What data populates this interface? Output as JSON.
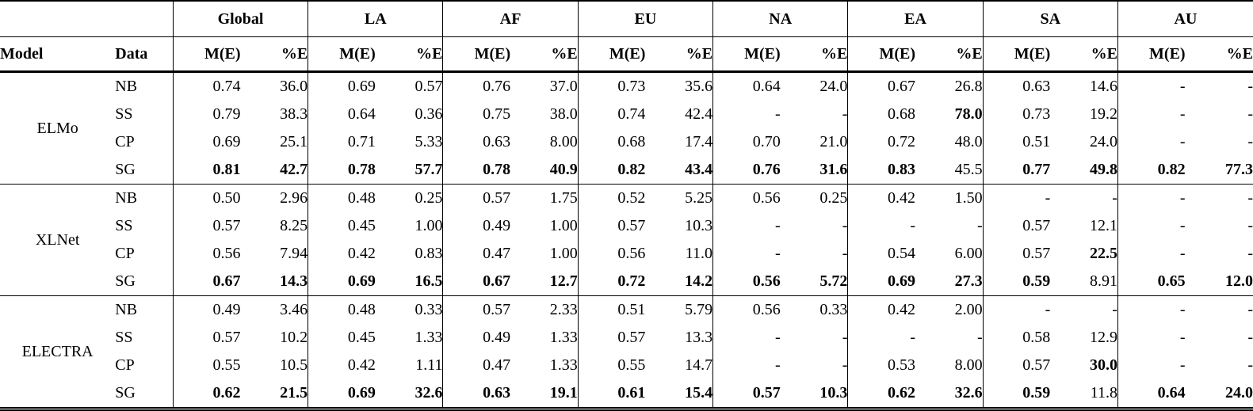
{
  "table": {
    "corner": "",
    "groups": [
      "Global",
      "LA",
      "AF",
      "EU",
      "NA",
      "EA",
      "SA",
      "AU"
    ],
    "col_headers": {
      "model": "Model",
      "data": "Data",
      "metric": "M(E)",
      "percent": "%E"
    },
    "blocks": [
      {
        "model": "ELMo",
        "rows": [
          {
            "data": "NB",
            "cells": [
              [
                "0.74",
                0
              ],
              [
                "36.0",
                0
              ],
              [
                "0.69",
                0
              ],
              [
                "0.57",
                0
              ],
              [
                "0.76",
                0
              ],
              [
                "37.0",
                0
              ],
              [
                "0.73",
                0
              ],
              [
                "35.6",
                0
              ],
              [
                "0.64",
                0
              ],
              [
                "24.0",
                0
              ],
              [
                "0.67",
                0
              ],
              [
                "26.8",
                0
              ],
              [
                "0.63",
                0
              ],
              [
                "14.6",
                0
              ],
              [
                "-",
                0
              ],
              [
                "-",
                0
              ]
            ]
          },
          {
            "data": "SS",
            "cells": [
              [
                "0.79",
                0
              ],
              [
                "38.3",
                0
              ],
              [
                "0.64",
                0
              ],
              [
                "0.36",
                0
              ],
              [
                "0.75",
                0
              ],
              [
                "38.0",
                0
              ],
              [
                "0.74",
                0
              ],
              [
                "42.4",
                0
              ],
              [
                "-",
                0
              ],
              [
                "-",
                0
              ],
              [
                "0.68",
                0
              ],
              [
                "78.0",
                1
              ],
              [
                "0.73",
                0
              ],
              [
                "19.2",
                0
              ],
              [
                "-",
                0
              ],
              [
                "-",
                0
              ]
            ]
          },
          {
            "data": "CP",
            "cells": [
              [
                "0.69",
                0
              ],
              [
                "25.1",
                0
              ],
              [
                "0.71",
                0
              ],
              [
                "5.33",
                0
              ],
              [
                "0.63",
                0
              ],
              [
                "8.00",
                0
              ],
              [
                "0.68",
                0
              ],
              [
                "17.4",
                0
              ],
              [
                "0.70",
                0
              ],
              [
                "21.0",
                0
              ],
              [
                "0.72",
                0
              ],
              [
                "48.0",
                0
              ],
              [
                "0.51",
                0
              ],
              [
                "24.0",
                0
              ],
              [
                "-",
                0
              ],
              [
                "-",
                0
              ]
            ]
          },
          {
            "data": "SG",
            "cells": [
              [
                "0.81",
                1
              ],
              [
                "42.7",
                1
              ],
              [
                "0.78",
                1
              ],
              [
                "57.7",
                1
              ],
              [
                "0.78",
                1
              ],
              [
                "40.9",
                1
              ],
              [
                "0.82",
                1
              ],
              [
                "43.4",
                1
              ],
              [
                "0.76",
                1
              ],
              [
                "31.6",
                1
              ],
              [
                "0.83",
                1
              ],
              [
                "45.5",
                0
              ],
              [
                "0.77",
                1
              ],
              [
                "49.8",
                1
              ],
              [
                "0.82",
                1
              ],
              [
                "77.3",
                1
              ]
            ]
          }
        ]
      },
      {
        "model": "XLNet",
        "rows": [
          {
            "data": "NB",
            "cells": [
              [
                "0.50",
                0
              ],
              [
                "2.96",
                0
              ],
              [
                "0.48",
                0
              ],
              [
                "0.25",
                0
              ],
              [
                "0.57",
                0
              ],
              [
                "1.75",
                0
              ],
              [
                "0.52",
                0
              ],
              [
                "5.25",
                0
              ],
              [
                "0.56",
                0
              ],
              [
                "0.25",
                0
              ],
              [
                "0.42",
                0
              ],
              [
                "1.50",
                0
              ],
              [
                "-",
                0
              ],
              [
                "-",
                0
              ],
              [
                "-",
                0
              ],
              [
                "-",
                0
              ]
            ]
          },
          {
            "data": "SS",
            "cells": [
              [
                "0.57",
                0
              ],
              [
                "8.25",
                0
              ],
              [
                "0.45",
                0
              ],
              [
                "1.00",
                0
              ],
              [
                "0.49",
                0
              ],
              [
                "1.00",
                0
              ],
              [
                "0.57",
                0
              ],
              [
                "10.3",
                0
              ],
              [
                "-",
                0
              ],
              [
                "-",
                0
              ],
              [
                "-",
                0
              ],
              [
                "-",
                0
              ],
              [
                "0.57",
                0
              ],
              [
                "12.1",
                0
              ],
              [
                "-",
                0
              ],
              [
                "-",
                0
              ]
            ]
          },
          {
            "data": "CP",
            "cells": [
              [
                "0.56",
                0
              ],
              [
                "7.94",
                0
              ],
              [
                "0.42",
                0
              ],
              [
                "0.83",
                0
              ],
              [
                "0.47",
                0
              ],
              [
                "1.00",
                0
              ],
              [
                "0.56",
                0
              ],
              [
                "11.0",
                0
              ],
              [
                "-",
                0
              ],
              [
                "-",
                0
              ],
              [
                "0.54",
                0
              ],
              [
                "6.00",
                0
              ],
              [
                "0.57",
                0
              ],
              [
                "22.5",
                1
              ],
              [
                "-",
                0
              ],
              [
                "-",
                0
              ]
            ]
          },
          {
            "data": "SG",
            "cells": [
              [
                "0.67",
                1
              ],
              [
                "14.3",
                1
              ],
              [
                "0.69",
                1
              ],
              [
                "16.5",
                1
              ],
              [
                "0.67",
                1
              ],
              [
                "12.7",
                1
              ],
              [
                "0.72",
                1
              ],
              [
                "14.2",
                1
              ],
              [
                "0.56",
                1
              ],
              [
                "5.72",
                1
              ],
              [
                "0.69",
                1
              ],
              [
                "27.3",
                1
              ],
              [
                "0.59",
                1
              ],
              [
                "8.91",
                0
              ],
              [
                "0.65",
                1
              ],
              [
                "12.0",
                1
              ]
            ]
          }
        ]
      },
      {
        "model": "ELECTRA",
        "rows": [
          {
            "data": "NB",
            "cells": [
              [
                "0.49",
                0
              ],
              [
                "3.46",
                0
              ],
              [
                "0.48",
                0
              ],
              [
                "0.33",
                0
              ],
              [
                "0.57",
                0
              ],
              [
                "2.33",
                0
              ],
              [
                "0.51",
                0
              ],
              [
                "5.79",
                0
              ],
              [
                "0.56",
                0
              ],
              [
                "0.33",
                0
              ],
              [
                "0.42",
                0
              ],
              [
                "2.00",
                0
              ],
              [
                "-",
                0
              ],
              [
                "-",
                0
              ],
              [
                "-",
                0
              ],
              [
                "-",
                0
              ]
            ]
          },
          {
            "data": "SS",
            "cells": [
              [
                "0.57",
                0
              ],
              [
                "10.2",
                0
              ],
              [
                "0.45",
                0
              ],
              [
                "1.33",
                0
              ],
              [
                "0.49",
                0
              ],
              [
                "1.33",
                0
              ],
              [
                "0.57",
                0
              ],
              [
                "13.3",
                0
              ],
              [
                "-",
                0
              ],
              [
                "-",
                0
              ],
              [
                "-",
                0
              ],
              [
                "-",
                0
              ],
              [
                "0.58",
                0
              ],
              [
                "12.9",
                0
              ],
              [
                "-",
                0
              ],
              [
                "-",
                0
              ]
            ]
          },
          {
            "data": "CP",
            "cells": [
              [
                "0.55",
                0
              ],
              [
                "10.5",
                0
              ],
              [
                "0.42",
                0
              ],
              [
                "1.11",
                0
              ],
              [
                "0.47",
                0
              ],
              [
                "1.33",
                0
              ],
              [
                "0.55",
                0
              ],
              [
                "14.7",
                0
              ],
              [
                "-",
                0
              ],
              [
                "-",
                0
              ],
              [
                "0.53",
                0
              ],
              [
                "8.00",
                0
              ],
              [
                "0.57",
                0
              ],
              [
                "30.0",
                1
              ],
              [
                "-",
                0
              ],
              [
                "-",
                0
              ]
            ]
          },
          {
            "data": "SG",
            "cells": [
              [
                "0.62",
                1
              ],
              [
                "21.5",
                1
              ],
              [
                "0.69",
                1
              ],
              [
                "32.6",
                1
              ],
              [
                "0.63",
                1
              ],
              [
                "19.1",
                1
              ],
              [
                "0.61",
                1
              ],
              [
                "15.4",
                1
              ],
              [
                "0.57",
                1
              ],
              [
                "10.3",
                1
              ],
              [
                "0.62",
                1
              ],
              [
                "32.6",
                1
              ],
              [
                "0.59",
                1
              ],
              [
                "11.8",
                0
              ],
              [
                "0.64",
                1
              ],
              [
                "24.0",
                1
              ]
            ]
          }
        ]
      }
    ]
  }
}
